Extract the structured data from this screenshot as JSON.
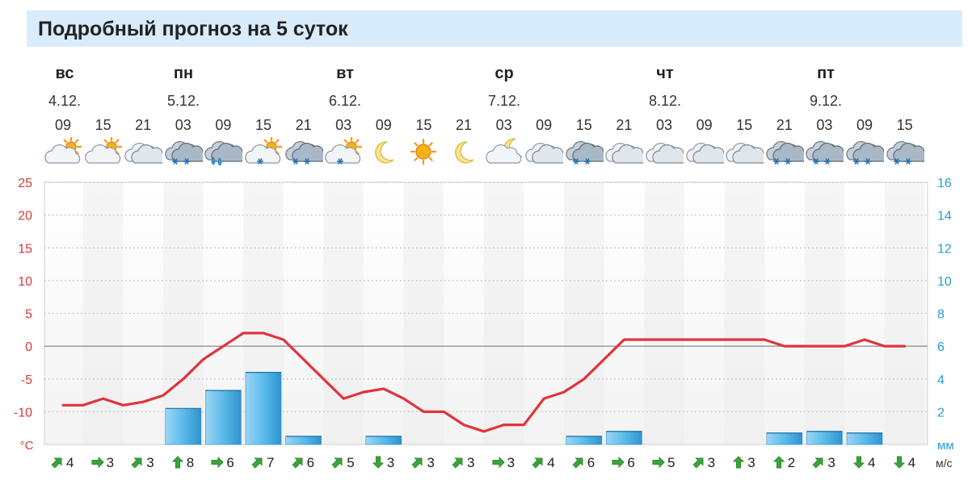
{
  "header": {
    "title": "Подробный прогноз на 5 суток"
  },
  "days": [
    {
      "name": "вс",
      "date": "4.12."
    },
    {
      "name": "пн",
      "date": "5.12."
    },
    {
      "name": "вт",
      "date": "6.12."
    },
    {
      "name": "ср",
      "date": "7.12."
    },
    {
      "name": "чт",
      "date": "8.12."
    },
    {
      "name": "пт",
      "date": "9.12."
    }
  ],
  "hours": [
    "09",
    "15",
    "21",
    "03",
    "09",
    "15",
    "21",
    "03",
    "09",
    "15",
    "21",
    "03",
    "09",
    "15",
    "21",
    "03",
    "09",
    "15",
    "21",
    "03",
    "09",
    "15"
  ],
  "weather_icons": [
    "partly-cloudy-day-icon",
    "partly-cloudy-day-icon",
    "cloudy-icon",
    "snow-icon",
    "rain-icon",
    "partly-cloudy-snow-day-icon",
    "snow-icon",
    "partly-cloudy-snow-day-icon",
    "moon-icon",
    "sun-icon",
    "moon-icon",
    "partly-cloudy-night-icon",
    "cloudy-icon",
    "snow-icon",
    "cloudy-icon",
    "cloudy-icon",
    "cloudy-icon",
    "cloudy-icon",
    "snow-icon",
    "snow-icon",
    "snow-icon",
    "snow-icon"
  ],
  "wind": {
    "unit": "м/с",
    "items": [
      {
        "dir": "ne",
        "speed": "4"
      },
      {
        "dir": "e",
        "speed": "3"
      },
      {
        "dir": "ne",
        "speed": "3"
      },
      {
        "dir": "n",
        "speed": "8"
      },
      {
        "dir": "e",
        "speed": "6"
      },
      {
        "dir": "ne",
        "speed": "7"
      },
      {
        "dir": "ne",
        "speed": "6"
      },
      {
        "dir": "ne",
        "speed": "5"
      },
      {
        "dir": "s",
        "speed": "3"
      },
      {
        "dir": "ne",
        "speed": "3"
      },
      {
        "dir": "ne",
        "speed": "3"
      },
      {
        "dir": "e",
        "speed": "3"
      },
      {
        "dir": "ne",
        "speed": "4"
      },
      {
        "dir": "ne",
        "speed": "6"
      },
      {
        "dir": "e",
        "speed": "6"
      },
      {
        "dir": "e",
        "speed": "5"
      },
      {
        "dir": "ne",
        "speed": "3"
      },
      {
        "dir": "n",
        "speed": "3"
      },
      {
        "dir": "n",
        "speed": "2"
      },
      {
        "dir": "ne",
        "speed": "3"
      },
      {
        "dir": "s",
        "speed": "4"
      },
      {
        "dir": "s",
        "speed": "4"
      }
    ]
  },
  "chart_data": {
    "type": "line",
    "title": "",
    "x": [
      "4.12. 09",
      "4.12. 15",
      "4.12. 21",
      "5.12. 03",
      "5.12. 09",
      "5.12. 15",
      "5.12. 21",
      "6.12. 03",
      "6.12. 09",
      "6.12. 15",
      "6.12. 21",
      "7.12. 03",
      "7.12. 09",
      "7.12. 15",
      "7.12. 21",
      "8.12. 03",
      "8.12. 09",
      "8.12. 15",
      "8.12. 21",
      "9.12. 03",
      "9.12. 09",
      "9.12. 15"
    ],
    "y_left": {
      "label": "°C",
      "ticks": [
        "25",
        "20",
        "15",
        "10",
        "5",
        "0",
        "-5",
        "-10"
      ],
      "range": [
        -15,
        25
      ]
    },
    "y_right": {
      "label": "мм",
      "ticks": [
        "16",
        "14",
        "12",
        "10",
        "8",
        "6",
        "4",
        "2"
      ],
      "range": [
        0,
        16
      ]
    },
    "temperature_x": [
      0,
      0.5,
      1,
      1.5,
      2,
      2.5,
      3,
      3.5,
      4,
      4.5,
      5,
      5.5,
      6,
      6.5,
      7,
      7.5,
      8,
      8.5,
      9,
      9.5,
      10,
      10.5,
      11,
      11.5,
      12,
      12.5,
      13,
      13.5,
      14,
      14.5,
      15,
      15.5,
      16,
      16.5,
      17,
      17.5,
      18,
      18.5,
      19,
      19.5,
      20,
      20.5,
      21
    ],
    "temperature": [
      -9,
      -9,
      -8,
      -9,
      -8.5,
      -7.5,
      -5,
      -2,
      0,
      2,
      2,
      1,
      -2,
      -5,
      -8,
      -7,
      -6.5,
      -8,
      -10,
      -10,
      -12,
      -13,
      -12,
      -12,
      -8,
      -7,
      -5,
      -2,
      1,
      1,
      1,
      1,
      1,
      1,
      1,
      1,
      0,
      0,
      0,
      0,
      1,
      0,
      0
    ],
    "precipitation": [
      0,
      0,
      0,
      2.2,
      3.3,
      4.4,
      0.5,
      0,
      0.5,
      0,
      0,
      0,
      0,
      0.5,
      0.8,
      0,
      0,
      0,
      0.7,
      0.8,
      0.7,
      0
    ],
    "grid": true
  }
}
